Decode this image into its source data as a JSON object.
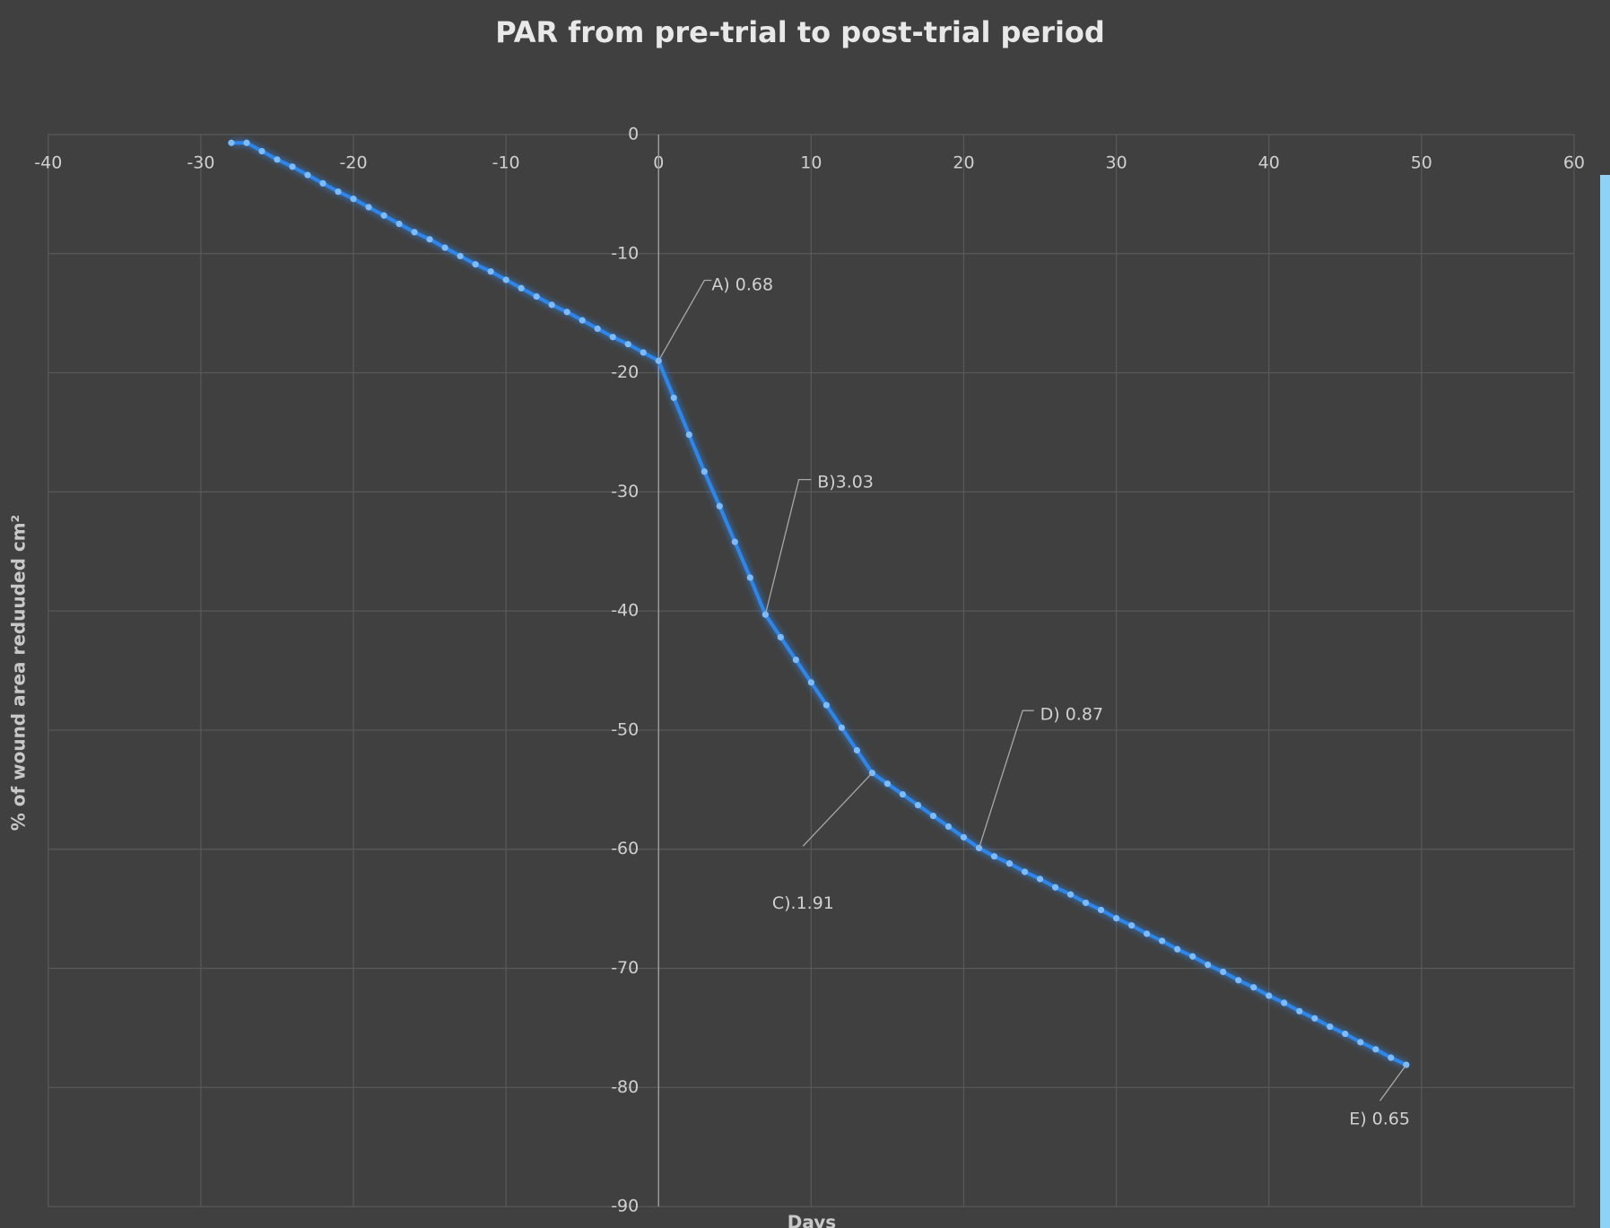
{
  "chart_data": {
    "type": "line",
    "title": "PAR from pre-trial to post-trial period",
    "x_label": "Days",
    "y_label": "% of wound area reduuded cm²",
    "x": [
      -28,
      -27,
      -26,
      -25,
      -24,
      -23,
      -22,
      -21,
      -20,
      -19,
      -18,
      -17,
      -16,
      -15,
      -14,
      -13,
      -12,
      -11,
      -10,
      -9,
      -8,
      -7,
      -6,
      -5,
      -4,
      -3,
      -2,
      -1,
      0,
      1,
      2,
      3,
      4,
      5,
      6,
      7,
      8,
      9,
      10,
      11,
      12,
      13,
      14,
      15,
      16,
      17,
      18,
      19,
      20,
      21,
      22,
      23,
      24,
      25,
      26,
      27,
      28,
      29,
      30,
      31,
      32,
      33,
      34,
      35,
      36,
      37,
      38,
      39,
      40,
      41,
      42,
      43,
      44,
      45,
      46,
      47,
      48,
      49
    ],
    "values": [
      -0.7,
      -0.7,
      -1.4,
      -2.1,
      -2.7,
      -3.4,
      -4.1,
      -4.8,
      -5.4,
      -6.1,
      -6.8,
      -7.5,
      -8.2,
      -8.8,
      -9.5,
      -10.2,
      -10.9,
      -11.5,
      -12.2,
      -12.9,
      -13.6,
      -14.3,
      -14.9,
      -15.6,
      -16.3,
      -17.0,
      -17.6,
      -18.3,
      -19.0,
      -22.1,
      -25.2,
      -28.3,
      -31.2,
      -34.2,
      -37.2,
      -40.3,
      -42.2,
      -44.1,
      -46.0,
      -47.9,
      -49.8,
      -51.7,
      -53.6,
      -54.5,
      -55.4,
      -56.3,
      -57.2,
      -58.1,
      -59.0,
      -59.9,
      -60.6,
      -61.2,
      -61.9,
      -62.5,
      -63.2,
      -63.8,
      -64.5,
      -65.1,
      -65.8,
      -66.4,
      -67.1,
      -67.7,
      -68.4,
      -69.0,
      -69.7,
      -70.3,
      -71.0,
      -71.6,
      -72.3,
      -72.9,
      -73.6,
      -74.2,
      -74.9,
      -75.5,
      -76.2,
      -76.8,
      -77.5,
      -78.1
    ],
    "color": "#2f86ea",
    "xlim": [
      -40,
      60
    ],
    "xticks": [
      -40,
      -30,
      -20,
      -10,
      0,
      10,
      20,
      30,
      40,
      50,
      60
    ],
    "ylim": [
      -90,
      0
    ],
    "yticks": [
      0,
      -10,
      -20,
      -30,
      -40,
      -50,
      -60,
      -70,
      -80,
      -90
    ],
    "grid": true,
    "annotations": [
      "A) 0.68",
      "B)3.03",
      "C).1.91",
      "D) 0.87",
      "E) 0.65"
    ]
  }
}
